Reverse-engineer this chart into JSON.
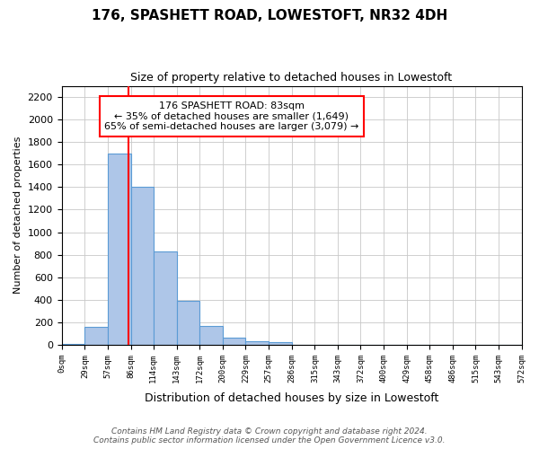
{
  "title": "176, SPASHETT ROAD, LOWESTOFT, NR32 4DH",
  "subtitle": "Size of property relative to detached houses in Lowestoft",
  "xlabel": "Distribution of detached houses by size in Lowestoft",
  "ylabel": "Number of detached properties",
  "bar_edges": [
    0,
    29,
    57,
    86,
    114,
    143,
    172,
    200,
    229,
    257,
    286,
    315,
    343,
    372,
    400,
    429,
    458,
    486,
    515,
    543,
    572
  ],
  "bar_heights": [
    10,
    155,
    1700,
    1400,
    830,
    390,
    165,
    65,
    30,
    20,
    0,
    0,
    0,
    0,
    0,
    0,
    0,
    0,
    0,
    0
  ],
  "bar_color": "#aec6e8",
  "bar_edgecolor": "#5b9bd5",
  "ylim": [
    0,
    2300
  ],
  "yticks": [
    0,
    200,
    400,
    600,
    800,
    1000,
    1200,
    1400,
    1600,
    1800,
    2000,
    2200
  ],
  "red_line_x": 83,
  "annotation_title": "176 SPASHETT ROAD: 83sqm",
  "annotation_line1": "← 35% of detached houses are smaller (1,649)",
  "annotation_line2": "65% of semi-detached houses are larger (3,079) →",
  "annotation_box_color": "white",
  "annotation_box_edgecolor": "red",
  "footer_line1": "Contains HM Land Registry data © Crown copyright and database right 2024.",
  "footer_line2": "Contains public sector information licensed under the Open Government Licence v3.0.",
  "xtick_labels": [
    "0sqm",
    "29sqm",
    "57sqm",
    "86sqm",
    "114sqm",
    "143sqm",
    "172sqm",
    "200sqm",
    "229sqm",
    "257sqm",
    "286sqm",
    "315sqm",
    "343sqm",
    "372sqm",
    "400sqm",
    "429sqm",
    "458sqm",
    "486sqm",
    "515sqm",
    "543sqm",
    "572sqm"
  ],
  "background_color": "#ffffff",
  "grid_color": "#c8c8c8",
  "title_fontsize": 11,
  "subtitle_fontsize": 9
}
